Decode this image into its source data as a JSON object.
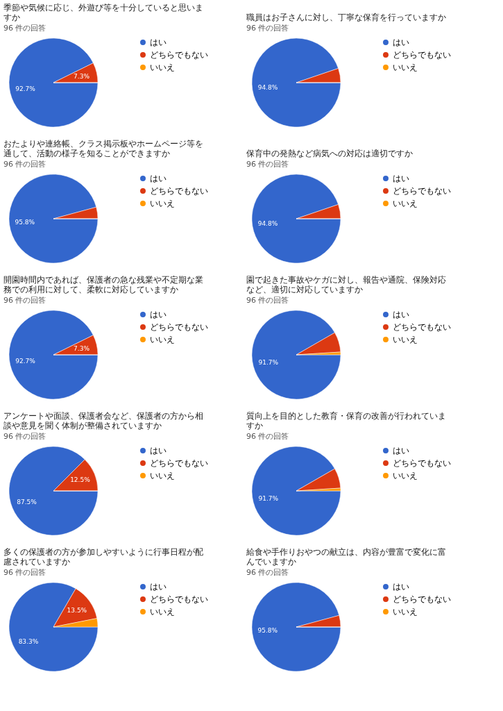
{
  "chart_data": [
    {
      "type": "pie",
      "title": "季節や気候に応じ、外遊び等を十分していると思いますか",
      "subtitle": "96 件の回答",
      "categories": [
        "はい",
        "どちらでもない",
        "いいえ"
      ],
      "values": [
        92.7,
        7.3,
        0
      ],
      "colors": [
        "#3366cc",
        "#dc3912",
        "#ff9900"
      ],
      "value_labels": [
        "92.7%",
        "7.3%",
        null
      ],
      "legend": "right"
    },
    {
      "type": "pie",
      "title": "職員はお子さんに対し、丁寧な保育を行っていますか",
      "subtitle": "96 件の回答",
      "categories": [
        "はい",
        "どちらでもない",
        "いいえ"
      ],
      "values": [
        94.8,
        5.2,
        0
      ],
      "colors": [
        "#3366cc",
        "#dc3912",
        "#ff9900"
      ],
      "value_labels": [
        "94.8%",
        null,
        null
      ],
      "legend": "right"
    },
    {
      "type": "pie",
      "title": "おたよりや連絡帳、クラス掲示板やホームページ等を通して、活動の様子を知ることができますか",
      "subtitle": "96 件の回答",
      "categories": [
        "はい",
        "どちらでもない",
        "いいえ"
      ],
      "values": [
        95.8,
        4.2,
        0
      ],
      "colors": [
        "#3366cc",
        "#dc3912",
        "#ff9900"
      ],
      "value_labels": [
        "95.8%",
        null,
        null
      ],
      "legend": "right"
    },
    {
      "type": "pie",
      "title": "保育中の発熱など病気への対応は適切ですか",
      "subtitle": "96 件の回答",
      "categories": [
        "はい",
        "どちらでもない",
        "いいえ"
      ],
      "values": [
        94.8,
        5.2,
        0
      ],
      "colors": [
        "#3366cc",
        "#dc3912",
        "#ff9900"
      ],
      "value_labels": [
        "94.8%",
        null,
        null
      ],
      "legend": "right"
    },
    {
      "type": "pie",
      "title": "開園時間内であれば、保護者の急な残業や不定期な業務での利用に対して、柔軟に対応していますか",
      "subtitle": "96 件の回答",
      "categories": [
        "はい",
        "どちらでもない",
        "いいえ"
      ],
      "values": [
        92.7,
        7.3,
        0
      ],
      "colors": [
        "#3366cc",
        "#dc3912",
        "#ff9900"
      ],
      "value_labels": [
        "92.7%",
        "7.3%",
        null
      ],
      "legend": "right"
    },
    {
      "type": "pie",
      "title": "園で起きた事故やケガに対し、報告や通院、保険対応など、適切に対応していますか",
      "subtitle": "96 件の回答",
      "categories": [
        "はい",
        "どちらでもない",
        "いいえ"
      ],
      "values": [
        91.7,
        7.3,
        1.0
      ],
      "colors": [
        "#3366cc",
        "#dc3912",
        "#ff9900"
      ],
      "value_labels": [
        "91.7%",
        null,
        null
      ],
      "legend": "right"
    },
    {
      "type": "pie",
      "title": "アンケートや面談、保護者会など、保護者の方から相談や意見を聞く体制が整備されていますか",
      "subtitle": "96 件の回答",
      "categories": [
        "はい",
        "どちらでもない",
        "いいえ"
      ],
      "values": [
        87.5,
        12.5,
        0
      ],
      "colors": [
        "#3366cc",
        "#dc3912",
        "#ff9900"
      ],
      "value_labels": [
        "87.5%",
        "12.5%",
        null
      ],
      "legend": "right"
    },
    {
      "type": "pie",
      "title": "質向上を目的とした教育・保育の改善が行われていますか",
      "subtitle": "96 件の回答",
      "categories": [
        "はい",
        "どちらでもない",
        "いいえ"
      ],
      "values": [
        91.7,
        7.3,
        1.0
      ],
      "colors": [
        "#3366cc",
        "#dc3912",
        "#ff9900"
      ],
      "value_labels": [
        "91.7%",
        null,
        null
      ],
      "legend": "right"
    },
    {
      "type": "pie",
      "title": "多くの保護者の方が参加しやすいように行事日程が配慮されていますか",
      "subtitle": "96 件の回答",
      "categories": [
        "はい",
        "どちらでもない",
        "いいえ"
      ],
      "values": [
        83.3,
        13.5,
        3.1
      ],
      "colors": [
        "#3366cc",
        "#dc3912",
        "#ff9900"
      ],
      "value_labels": [
        "83.3%",
        "13.5%",
        null
      ],
      "legend": "right"
    },
    {
      "type": "pie",
      "title": "給食や手作りおやつの献立は、内容が豊富で変化に富んでいますか",
      "subtitle": "96 件の回答",
      "categories": [
        "はい",
        "どちらでもない",
        "いいえ"
      ],
      "values": [
        95.8,
        4.2,
        0
      ],
      "colors": [
        "#3366cc",
        "#dc3912",
        "#ff9900"
      ],
      "value_labels": [
        "95.8%",
        null,
        null
      ],
      "legend": "right"
    }
  ]
}
